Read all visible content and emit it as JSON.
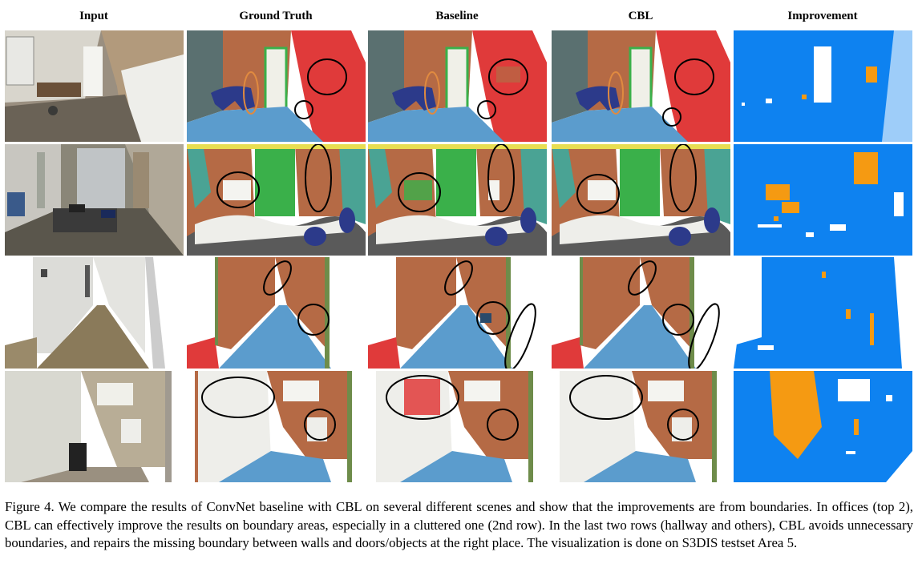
{
  "columns": [
    "Input",
    "Ground Truth",
    "Baseline",
    "CBL",
    "Improvement"
  ],
  "rows": [
    {
      "scene": "office",
      "cells": [
        {
          "icon": "photo-office-1"
        },
        {
          "icon": "segmentation-gt-office-1"
        },
        {
          "icon": "segmentation-baseline-office-1"
        },
        {
          "icon": "segmentation-cbl-office-1"
        },
        {
          "icon": "improvement-map-office-1"
        }
      ]
    },
    {
      "scene": "office-cluttered",
      "cells": [
        {
          "icon": "photo-office-2"
        },
        {
          "icon": "segmentation-gt-office-2"
        },
        {
          "icon": "segmentation-baseline-office-2"
        },
        {
          "icon": "segmentation-cbl-office-2"
        },
        {
          "icon": "improvement-map-office-2"
        }
      ]
    },
    {
      "scene": "hallway",
      "cells": [
        {
          "icon": "photo-hallway"
        },
        {
          "icon": "segmentation-gt-hallway"
        },
        {
          "icon": "segmentation-baseline-hallway"
        },
        {
          "icon": "segmentation-cbl-hallway"
        },
        {
          "icon": "improvement-map-hallway"
        }
      ]
    },
    {
      "scene": "other",
      "cells": [
        {
          "icon": "photo-other"
        },
        {
          "icon": "segmentation-gt-other"
        },
        {
          "icon": "segmentation-baseline-other"
        },
        {
          "icon": "segmentation-cbl-other"
        },
        {
          "icon": "improvement-map-other"
        }
      ]
    }
  ],
  "colors": {
    "wall": "#b56a45",
    "floor": "#5b9ccd",
    "column": "#e03a3a",
    "door": "#3ab04a",
    "ceiling": "#eeeeea",
    "chair": "#2c3a8a",
    "board": "#4aa394",
    "beam": "#e8de52",
    "clutter": "#5a5a5a",
    "window": "#6e8c4a",
    "improve_bg": "#0e82f0",
    "improve_fg": "#f59a12",
    "highlight_black": "#000000",
    "highlight_orange": "#e08a40"
  },
  "caption": "Figure 4.  We compare the results of ConvNet baseline with CBL on several different scenes and show that the improvements are from boundaries. In offices (top 2), CBL can effectively improve the results on boundary areas, especially in a cluttered one (2nd row). In the last two rows (hallway and others), CBL avoids unnecessary boundaries, and repairs the missing boundary between walls and doors/objects at the right place. The visualization is done on S3DIS testset Area 5."
}
